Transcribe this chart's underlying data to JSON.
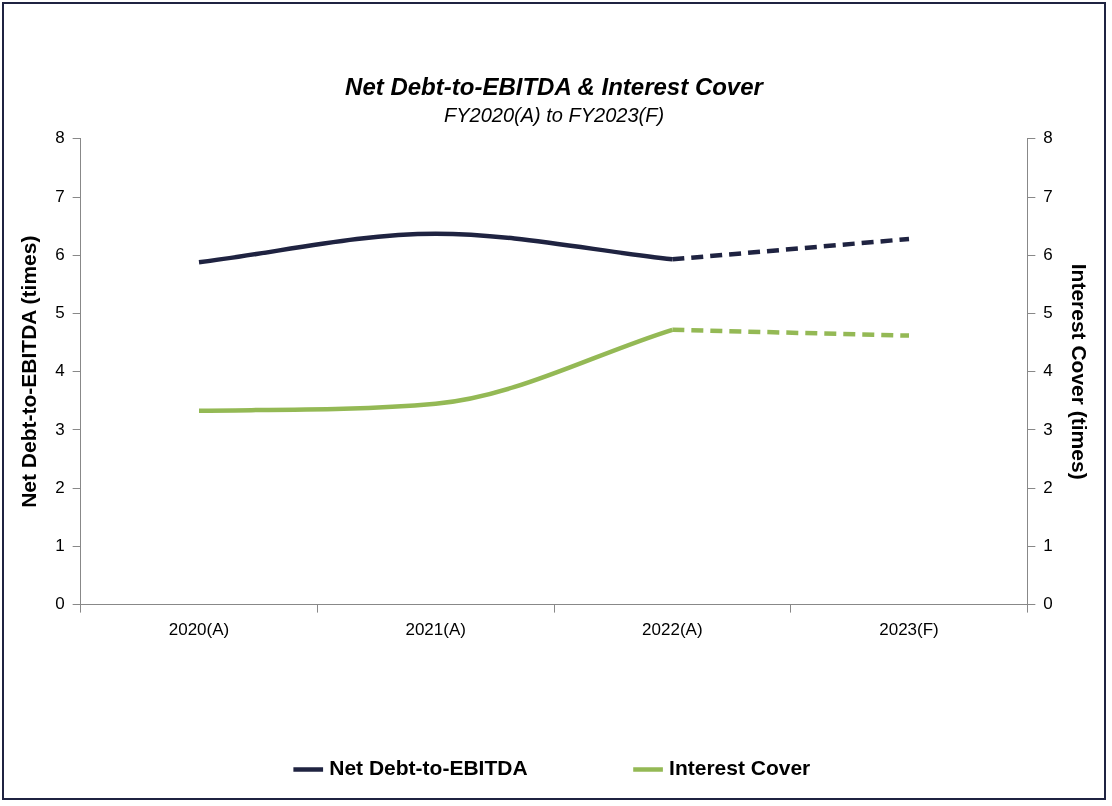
{
  "chart_data": {
    "type": "line",
    "title": "Net Debt-to-EBITDA & Interest Cover",
    "subtitle": "FY2020(A) to FY2023(F)",
    "ylabel": "Net Debt-to-EBITDA (times)",
    "y2label": "Interest Cover (times)",
    "categories": [
      "2020(A)",
      "2021(A)",
      "2022(A)",
      "2023(F)"
    ],
    "series": [
      {
        "name": "Net Debt-to-EBITDA",
        "color": "#1f2341",
        "values": [
          5.88,
          6.37,
          5.93,
          null
        ],
        "line_style": "solid"
      },
      {
        "color": "#1f2341",
        "values": [
          null,
          null,
          5.93,
          6.28
        ],
        "line_style": "dashed"
      },
      {
        "name": "Interest Cover",
        "color": "#94b955",
        "values": [
          3.33,
          3.45,
          4.72,
          null
        ],
        "axis": "y2",
        "line_style": "solid"
      },
      {
        "color": "#94b955",
        "values": [
          null,
          null,
          4.72,
          4.62
        ],
        "axis": "y2",
        "line_style": "dashed"
      }
    ],
    "ylim": [
      0,
      8
    ],
    "yticks": [
      0,
      1,
      2,
      3,
      4,
      5,
      6,
      7,
      8
    ],
    "y2lim": [
      0,
      8
    ],
    "y2ticks": [
      0,
      1,
      2,
      3,
      4,
      5,
      6,
      7,
      8
    ],
    "grid": false,
    "legend": "bottom",
    "marker": "none"
  }
}
